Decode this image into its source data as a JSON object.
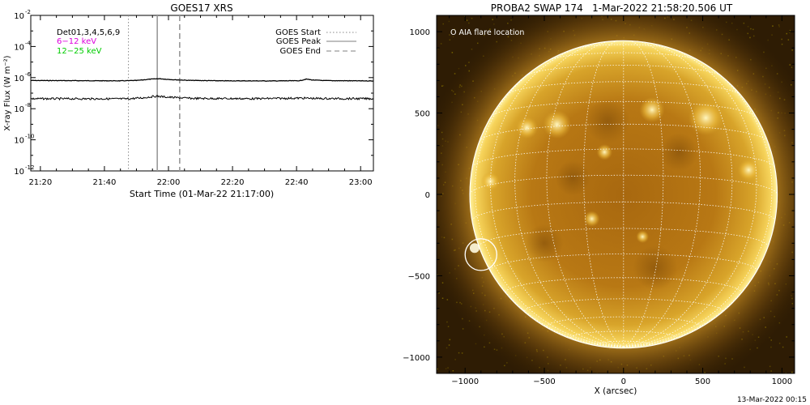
{
  "footer": {
    "timestamp": "13-Mar-2022 00:15"
  },
  "chart_data": [
    {
      "type": "line",
      "title": "GOES17 XRS",
      "xlabel": "Start Time (01-Mar-22 21:17:00)",
      "ylabel": "X-ray Flux (W m⁻²)",
      "ylog": true,
      "xlim_minutes_after_start": [
        0,
        107
      ],
      "ylim": [
        1e-12,
        0.01
      ],
      "x_ticks": [
        {
          "minutes": 3,
          "label": "21:20"
        },
        {
          "minutes": 23,
          "label": "21:40"
        },
        {
          "minutes": 43,
          "label": "22:00"
        },
        {
          "minutes": 63,
          "label": "22:20"
        },
        {
          "minutes": 83,
          "label": "22:40"
        },
        {
          "minutes": 103,
          "label": "23:00"
        }
      ],
      "y_ticks": [
        {
          "exp": -2,
          "label": "-2"
        },
        {
          "exp": -4,
          "label": "-4"
        },
        {
          "exp": -6,
          "label": "-6"
        },
        {
          "exp": -8,
          "label": "-8"
        },
        {
          "exp": -10,
          "label": "-10"
        },
        {
          "exp": -12,
          "label": "-12"
        }
      ],
      "legend_left": [
        {
          "text": "Det01,3,4,5,6,9",
          "color": "#000000"
        },
        {
          "text": "6−12 keV",
          "color": "#dd00dd"
        },
        {
          "text": "12−25 keV",
          "color": "#00cc00"
        }
      ],
      "legend_right": [
        {
          "text": "GOES Start",
          "style": "dotted"
        },
        {
          "text": "GOES Peak",
          "style": "solid"
        },
        {
          "text": "GOES End",
          "style": "dashed"
        }
      ],
      "markers_minutes": {
        "start": 30.5,
        "peak": 39.5,
        "end": 46.5
      },
      "series": [
        {
          "color": "#000000",
          "points": [
            [
              0,
              6.5e-07
            ],
            [
              28,
              6.2e-07
            ],
            [
              33,
              6.5e-07
            ],
            [
              37,
              7.8e-07
            ],
            [
              40,
              8.5e-07
            ],
            [
              44,
              7.4e-07
            ],
            [
              50,
              6.6e-07
            ],
            [
              60,
              6.2e-07
            ],
            [
              75,
              6.1e-07
            ],
            [
              84,
              6.3e-07
            ],
            [
              86,
              8e-07
            ],
            [
              88,
              7e-07
            ],
            [
              92,
              6.4e-07
            ],
            [
              107,
              6.1e-07
            ]
          ]
        },
        {
          "color": "#000000",
          "points": [
            [
              0,
              4.4e-08
            ],
            [
              30,
              4.3e-08
            ],
            [
              35,
              5e-08
            ],
            [
              39,
              6.4e-08
            ],
            [
              43,
              5.5e-08
            ],
            [
              50,
              4.6e-08
            ],
            [
              70,
              4.4e-08
            ],
            [
              85,
              4.8e-08
            ],
            [
              90,
              4.5e-08
            ],
            [
              107,
              4.4e-08
            ]
          ]
        }
      ]
    },
    {
      "type": "image",
      "title": "PROBA2 SWAP 174   1-Mar-2022 21:58:20.506 UT",
      "xlabel": "X (arcsec)",
      "ylabel": "",
      "xlim": [
        -1180,
        1080
      ],
      "ylim": [
        -1100,
        1100
      ],
      "x_ticks": [
        -1000,
        -500,
        0,
        500,
        1000
      ],
      "y_ticks": [
        1000,
        500,
        0,
        -500,
        -1000
      ],
      "solar_radius_arcsec": 970,
      "legend": "O AIA flare location",
      "flare_location": [
        -900,
        -370
      ],
      "flare_circle_radius_arcsec": 100
    }
  ]
}
